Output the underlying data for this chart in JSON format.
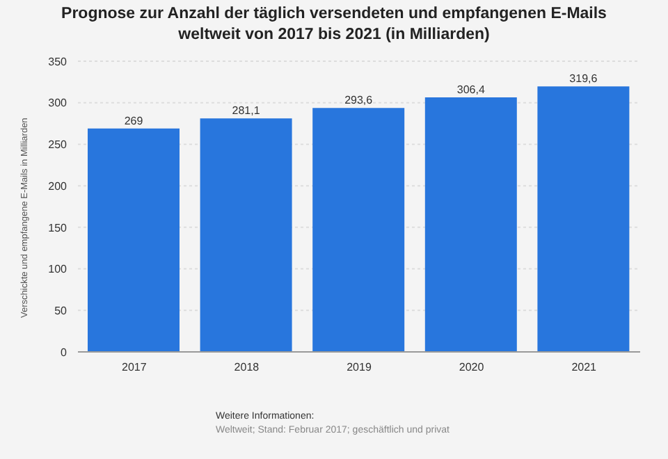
{
  "chart_data": {
    "type": "bar",
    "title": "Prognose zur Anzahl der täglich versendeten und empfangenen E-Mails weltweit von 2017 bis 2021 (in Milliarden)",
    "ylabel": "Verschickte und empfangene E-Mails in Milliarden",
    "categories": [
      "2017",
      "2018",
      "2019",
      "2020",
      "2021"
    ],
    "values": [
      269,
      281.1,
      293.6,
      306.4,
      319.6
    ],
    "value_labels": [
      "269",
      "281,1",
      "293,6",
      "306,4",
      "319,6"
    ],
    "color": "#2876dd",
    "ylim": [
      0,
      350
    ],
    "yticks": [
      0,
      50,
      100,
      150,
      200,
      250,
      300,
      350
    ],
    "grid": "y",
    "annotations": [
      "Weitere Informationen:",
      "Weltweit; Stand: Februar 2017; geschäftlich und privat"
    ]
  }
}
